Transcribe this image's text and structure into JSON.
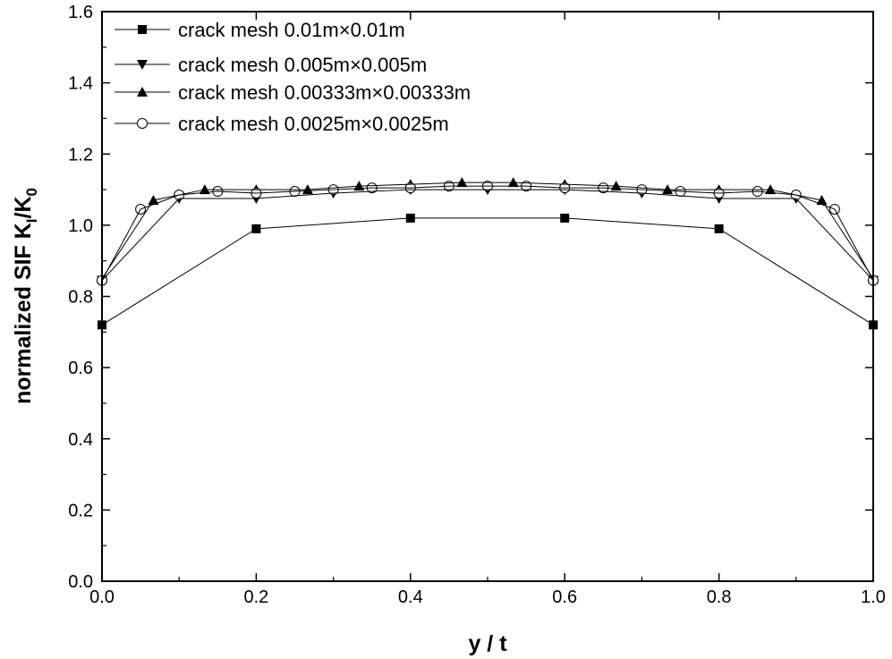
{
  "chart_data": {
    "type": "line",
    "xlabel": "y / t",
    "ylabel_main": "normalized SIF K",
    "ylabel_sub1": "I",
    "ylabel_mid": "/K",
    "ylabel_sub2": "0",
    "xlim": [
      0.0,
      1.0
    ],
    "ylim": [
      0.0,
      1.6
    ],
    "x_ticks": [
      "0.0",
      "0.2",
      "0.4",
      "0.6",
      "0.8",
      "1.0"
    ],
    "y_ticks": [
      "0.0",
      "0.2",
      "0.4",
      "0.6",
      "0.8",
      "1.0",
      "1.2",
      "1.4",
      "1.6"
    ],
    "legend_position": "top-left",
    "series": [
      {
        "name": "crack mesh 0.01m×0.01m",
        "marker": "square",
        "x": [
          0.0,
          0.2,
          0.4,
          0.6,
          0.8,
          1.0
        ],
        "y": [
          0.72,
          0.99,
          1.02,
          1.02,
          0.99,
          0.72
        ]
      },
      {
        "name": "crack mesh 0.005m×0.005m",
        "marker": "triangle-down",
        "x": [
          0.0,
          0.1,
          0.2,
          0.3,
          0.4,
          0.5,
          0.6,
          0.7,
          0.8,
          0.9,
          1.0
        ],
        "y": [
          0.845,
          1.075,
          1.075,
          1.09,
          1.1,
          1.1,
          1.1,
          1.09,
          1.075,
          1.075,
          0.845
        ]
      },
      {
        "name": "crack mesh 0.00333m×0.00333m",
        "marker": "triangle-up",
        "x": [
          0.0,
          0.0667,
          0.1333,
          0.2,
          0.2667,
          0.3333,
          0.4,
          0.4667,
          0.5333,
          0.6,
          0.6667,
          0.7333,
          0.8,
          0.8667,
          0.9333,
          1.0
        ],
        "y": [
          0.85,
          1.07,
          1.1,
          1.1,
          1.1,
          1.11,
          1.115,
          1.12,
          1.12,
          1.115,
          1.11,
          1.1,
          1.1,
          1.1,
          1.07,
          0.85
        ]
      },
      {
        "name": "crack mesh 0.0025m×0.0025m",
        "marker": "circle-open",
        "x": [
          0.0,
          0.05,
          0.1,
          0.15,
          0.2,
          0.25,
          0.3,
          0.35,
          0.4,
          0.45,
          0.5,
          0.55,
          0.6,
          0.65,
          0.7,
          0.75,
          0.8,
          0.85,
          0.9,
          0.95,
          1.0
        ],
        "y": [
          0.845,
          1.045,
          1.085,
          1.095,
          1.09,
          1.095,
          1.1,
          1.105,
          1.105,
          1.11,
          1.11,
          1.11,
          1.105,
          1.105,
          1.1,
          1.095,
          1.09,
          1.095,
          1.085,
          1.045,
          0.845
        ]
      }
    ]
  }
}
